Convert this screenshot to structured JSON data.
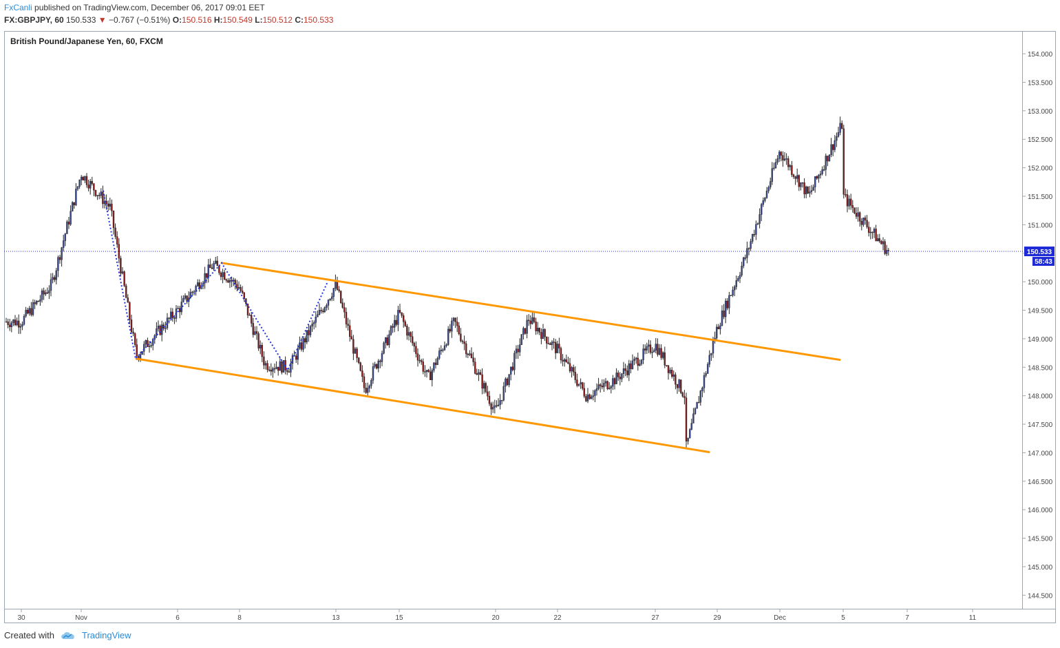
{
  "header": {
    "author": "FxCanli",
    "published_text": "published on TradingView.com, December 06, 2017 09:01 EET",
    "symbol_interval": "FX:GBPJPY, 60",
    "last": "150.533",
    "change": "−0.767 (−0.51%)",
    "open_label": "O:",
    "open": "150.516",
    "high_label": "H:",
    "high": "150.549",
    "low_label": "L:",
    "low": "150.512",
    "close_label": "C:",
    "close": "150.533"
  },
  "chart_title": "British Pound/Japanese Yen, 60, FXCM",
  "footer": {
    "created_with": "Created with",
    "brand": "TradingView"
  },
  "colors": {
    "up": "#3b4a8c",
    "down": "#8b1a1a",
    "channel": "#ff9800",
    "zigzag": "#2233dd",
    "price_label": "#1e2ad6"
  },
  "chart_data": {
    "type": "candlestick",
    "title": "British Pound/Japanese Yen, 60, FXCM",
    "ylim": [
      144.25,
      154.4
    ],
    "y_ticks": [
      "144.500",
      "145.000",
      "145.500",
      "146.000",
      "146.500",
      "147.000",
      "147.500",
      "148.000",
      "148.500",
      "149.000",
      "149.500",
      "150.000",
      "150.500",
      "151.000",
      "151.500",
      "152.000",
      "152.500",
      "153.000",
      "153.500",
      "154.000"
    ],
    "x_ticks": [
      "30",
      "Nov",
      "6",
      "8",
      "13",
      "15",
      "20",
      "22",
      "27",
      "29",
      "Dec",
      "5",
      "7",
      "11"
    ],
    "current_price": "150.533",
    "countdown": "58:43",
    "key_points": [
      {
        "t": "30 Oct",
        "v": 149.3
      },
      {
        "t": "31 Oct",
        "v": 149.95
      },
      {
        "t": "1 Nov",
        "v": 151.9
      },
      {
        "t": "2 Nov",
        "v": 151.3
      },
      {
        "t": "3 Nov",
        "v": 148.7
      },
      {
        "t": "6 Nov",
        "v": 149.5
      },
      {
        "t": "7 Nov",
        "v": 150.3
      },
      {
        "t": "8 Nov",
        "v": 149.9
      },
      {
        "t": "9 Nov",
        "v": 148.55
      },
      {
        "t": "10 Nov",
        "v": 148.5
      },
      {
        "t": "13 Nov",
        "v": 149.95
      },
      {
        "t": "14 Nov",
        "v": 148.1
      },
      {
        "t": "15 Nov",
        "v": 149.45
      },
      {
        "t": "16 Nov",
        "v": 148.3
      },
      {
        "t": "17 Nov",
        "v": 149.3
      },
      {
        "t": "20 Nov",
        "v": 147.7
      },
      {
        "t": "21 Nov",
        "v": 149.35
      },
      {
        "t": "22 Nov",
        "v": 148.8
      },
      {
        "t": "23 Nov",
        "v": 148.0
      },
      {
        "t": "24 Nov",
        "v": 148.3
      },
      {
        "t": "27 Nov",
        "v": 148.9
      },
      {
        "t": "28 Nov",
        "v": 148.0
      },
      {
        "t": "28 Nov",
        "v": 147.0
      },
      {
        "t": "29 Nov",
        "v": 149.2
      },
      {
        "t": "30 Nov",
        "v": 150.5
      },
      {
        "t": "1 Dec",
        "v": 152.3
      },
      {
        "t": "4 Dec",
        "v": 151.5
      },
      {
        "t": "5 Dec",
        "v": 152.8
      },
      {
        "t": "5 Dec",
        "v": 151.5
      },
      {
        "t": "6 Dec",
        "v": 150.53
      }
    ],
    "channel_upper": [
      {
        "t": "7 Nov",
        "v": 150.33
      },
      {
        "t": "6 Dec",
        "v": 148.5
      }
    ],
    "channel_lower": [
      {
        "t": "3 Nov",
        "v": 148.65
      },
      {
        "t": "28 Nov",
        "v": 147.08
      }
    ],
    "zigzag": [
      151.6,
      148.65,
      150.33,
      148.45,
      150.0
    ]
  }
}
